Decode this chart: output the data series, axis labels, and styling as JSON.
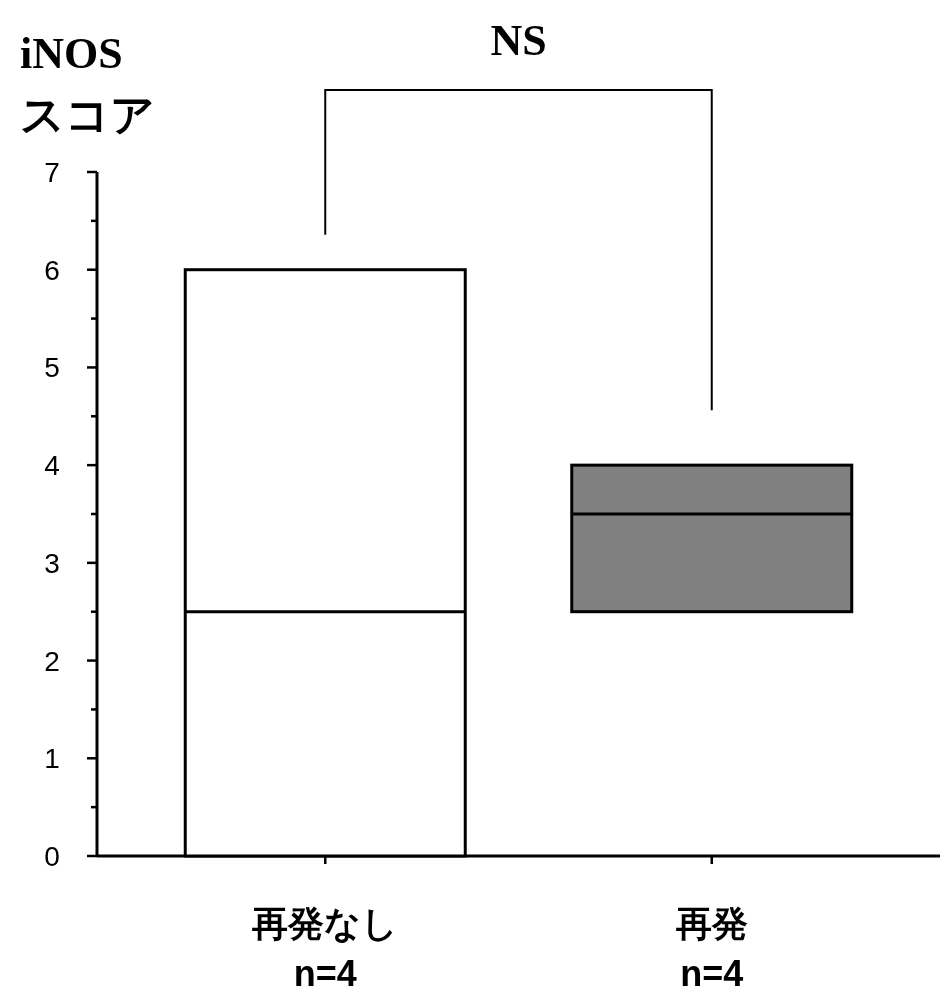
{
  "chart_data": {
    "type": "box",
    "ylabel": "iNOS\nスコア",
    "annotations": [
      "NS"
    ],
    "categories": [
      "再発なし\nn=4",
      "再発\nn=4"
    ],
    "boxes": [
      {
        "q1": 0,
        "median": 2.5,
        "q3": 6
      },
      {
        "q1": 2.5,
        "median": 3.5,
        "q3": 4
      }
    ],
    "colors": [
      "#ffffff",
      "#808080"
    ],
    "ylim": [
      0,
      7
    ],
    "yticks": [
      0,
      {
        "value": 0.5,
        "label": null
      },
      1,
      {
        "value": 1.5,
        "label": null
      },
      2,
      {
        "value": 2.5,
        "label": null
      },
      3,
      {
        "value": 3.5,
        "label": null
      },
      4,
      {
        "value": 4.5,
        "label": null
      },
      5,
      {
        "value": 5.5,
        "label": null
      },
      6,
      {
        "value": 6.5,
        "label": null
      },
      7
    ]
  }
}
